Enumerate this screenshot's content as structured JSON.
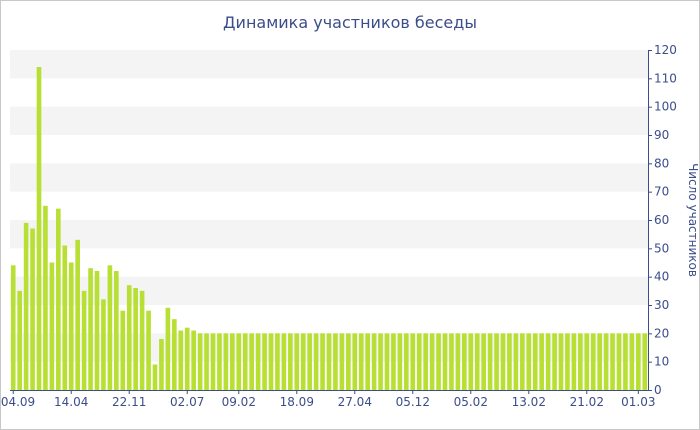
{
  "chart_data": {
    "type": "bar",
    "title": "Динамика участников беседы",
    "xlabel": "",
    "ylabel": "Число участников",
    "ylim": [
      0,
      120
    ],
    "yticks": [
      0,
      10,
      20,
      30,
      40,
      50,
      60,
      70,
      80,
      90,
      100,
      110,
      120
    ],
    "y_axis_side": "right",
    "grid": "alternating horizontal bands",
    "legend": "none",
    "bar_color": "#b8e034",
    "band_color": "#f4f4f4",
    "text_color": "#3b4d8a",
    "x_tick_labels": [
      "04.09",
      "14.04",
      "22.11",
      "02.07",
      "09.02",
      "18.09",
      "27.04",
      "05.12",
      "05.02",
      "13.02",
      "21.02",
      "01.03"
    ],
    "x_tick_positions": [
      0,
      9,
      18,
      27,
      35,
      44,
      53,
      62,
      71,
      80,
      89,
      97
    ],
    "values": [
      44,
      35,
      59,
      57,
      114,
      65,
      45,
      64,
      51,
      45,
      53,
      35,
      43,
      42,
      32,
      44,
      42,
      28,
      37,
      36,
      35,
      28,
      9,
      18,
      29,
      25,
      21,
      22,
      21,
      20,
      20,
      20,
      20,
      20,
      20,
      20,
      20,
      20,
      20,
      20,
      20,
      20,
      20,
      20,
      20,
      20,
      20,
      20,
      20,
      20,
      20,
      20,
      20,
      20,
      20,
      20,
      20,
      20,
      20,
      20,
      20,
      20,
      20,
      20,
      20,
      20,
      20,
      20,
      20,
      20,
      20,
      20,
      20,
      20,
      20,
      20,
      20,
      20,
      20,
      20,
      20,
      20,
      20,
      20,
      20,
      20,
      20,
      20,
      20,
      20,
      20,
      20,
      20,
      20,
      20,
      20,
      20,
      20,
      20
    ]
  }
}
